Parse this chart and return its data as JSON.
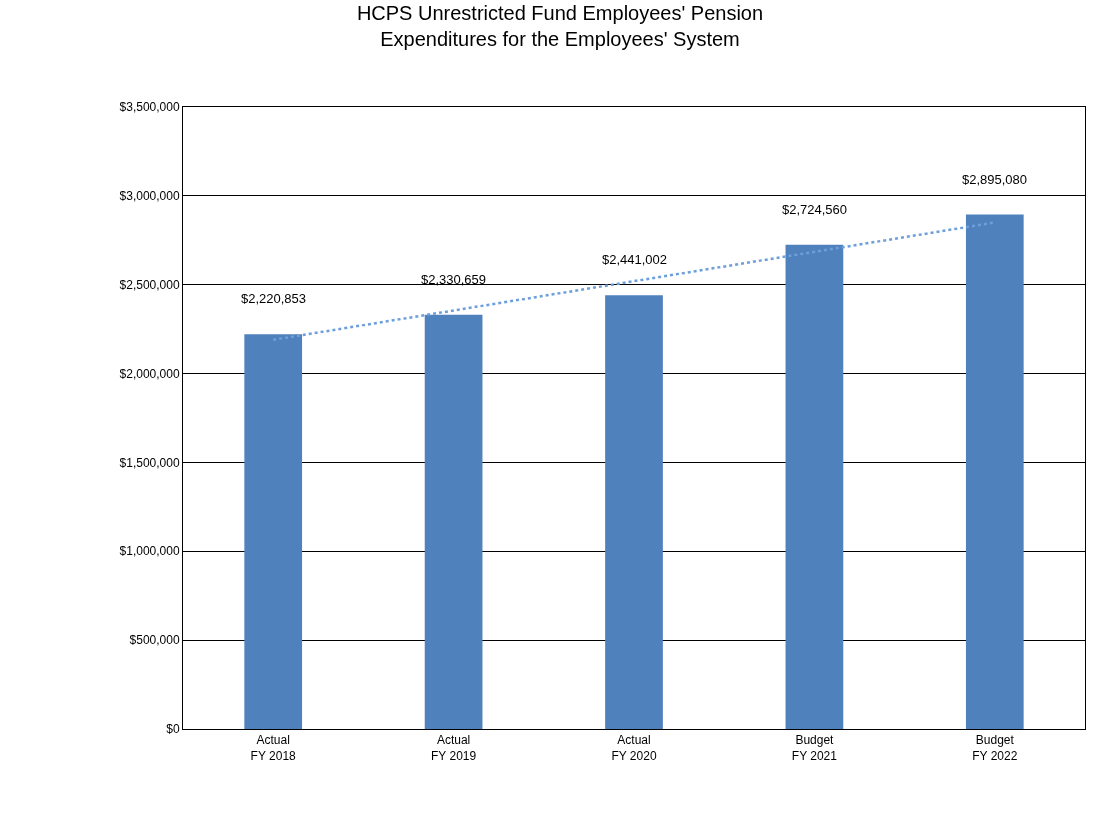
{
  "chart_data": {
    "type": "bar",
    "title": "HCPS Unrestricted Fund Employees' Pension\nExpenditures for the Employees' System",
    "categories": [
      "Actual\nFY 2018",
      "Actual\nFY 2019",
      "Actual\nFY 2020",
      "Budget\nFY 2021",
      "Budget\nFY 2022"
    ],
    "series": [
      {
        "color": "#4f81bd",
        "values": [
          2220853,
          2330659,
          2441002,
          2724560,
          2895080
        ],
        "value_labels": [
          "$2,220,853",
          "$2,330,659",
          "$2,441,002",
          "$2,724,560",
          "$2,895,080"
        ]
      },
      {
        "type": "line",
        "color": "#6d9fdc",
        "line_style": "dotted",
        "x": [
          "Actual\nFY 2018",
          "Budget\nFY 2022"
        ],
        "values": [
          2190000,
          2850000
        ]
      }
    ],
    "ylim": [
      0,
      3500000
    ],
    "yticks": [
      {
        "value": 0,
        "label": "$0"
      },
      {
        "value": 500000,
        "label": "$500,000"
      },
      {
        "value": 1000000,
        "label": "$1,000,000"
      },
      {
        "value": 1500000,
        "label": "$1,500,000"
      },
      {
        "value": 2000000,
        "label": "$2,000,000"
      },
      {
        "value": 2500000,
        "label": "$2,500,000"
      },
      {
        "value": 3000000,
        "label": "$3,000,000"
      },
      {
        "value": 3500000,
        "label": "$3,500,000"
      }
    ],
    "grid": "y"
  }
}
